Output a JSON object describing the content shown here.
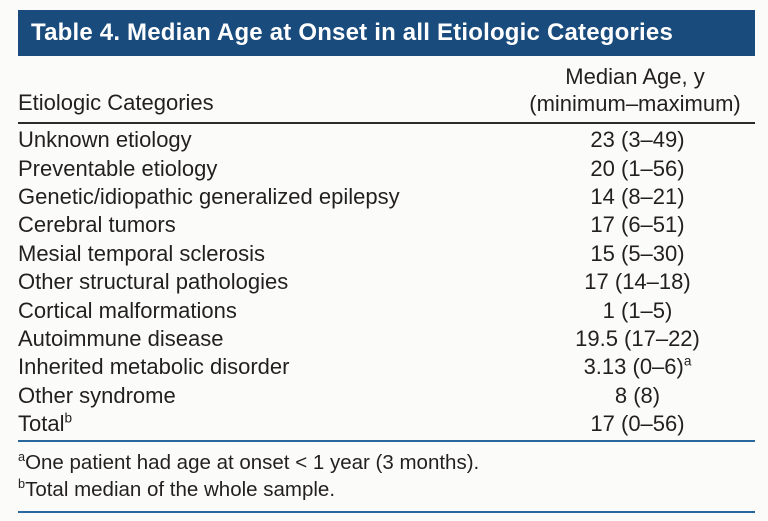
{
  "colors": {
    "header_bg": "#1a4b7d",
    "title_text": "#ffffff",
    "body_text": "#231f20",
    "blue_rule": "#2a679d",
    "dark_rule": "#2b2b2b"
  },
  "table": {
    "title": "Table 4. Median Age at Onset in all Etiologic Categories",
    "columns": {
      "col1": "Etiologic Categories",
      "col2_line1": "Median Age, y",
      "col2_line2": "(minimum–maximum)"
    },
    "rows": [
      {
        "category": "Unknown etiology",
        "value": "23 (3–49)"
      },
      {
        "category": "Preventable etiology",
        "value": "20 (1–56)"
      },
      {
        "category": "Genetic/idiopathic generalized epilepsy",
        "value": "14 (8–21)"
      },
      {
        "category": "Cerebral tumors",
        "value": "17 (6–51)"
      },
      {
        "category": "Mesial temporal sclerosis",
        "value": "15 (5–30)"
      },
      {
        "category": "Other structural pathologies",
        "value": "17 (14–18)"
      },
      {
        "category": "Cortical malformations",
        "value": "1 (1–5)"
      },
      {
        "category": "Autoimmune disease",
        "value": "19.5 (17–22)"
      },
      {
        "category": "Inherited metabolic disorder",
        "value": "3.13 (0–6)",
        "value_sup": "a"
      },
      {
        "category": "Other syndrome",
        "value": "8 (8)"
      },
      {
        "category": "Total",
        "category_sup": "b",
        "value": "17 (0–56)"
      }
    ],
    "footnotes": [
      {
        "sup": "a",
        "text": "One patient had age at onset < 1 year (3 months)."
      },
      {
        "sup": "b",
        "text": "Total median of the whole sample."
      }
    ]
  }
}
